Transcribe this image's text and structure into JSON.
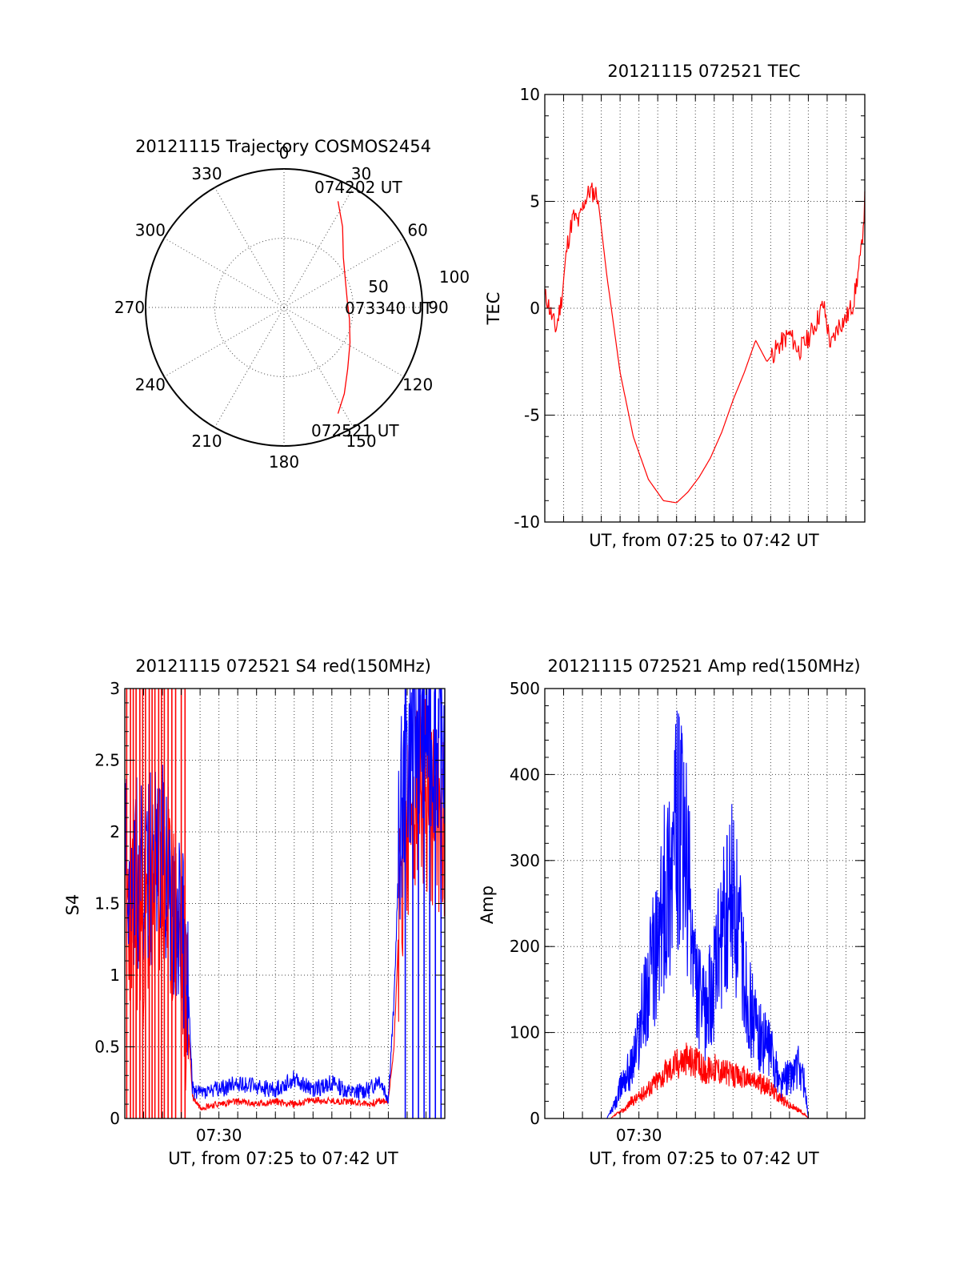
{
  "figure": {
    "colors": {
      "red": "#ff0000",
      "blue": "#0000ff",
      "axis": "#000000",
      "grid": "#444444",
      "background": "#ffffff"
    }
  },
  "chart_data": [
    {
      "type": "polar",
      "title": "20121115 Trajectory COSMOS2454",
      "angle_labels": [
        "0",
        "30",
        "60",
        "90",
        "120",
        "150",
        "180",
        "210",
        "240",
        "270",
        "300",
        "330"
      ],
      "radius_labels": [
        "50",
        "100"
      ],
      "rlim": [
        0,
        100
      ],
      "grid": true,
      "series": [
        {
          "color": "#ff0000",
          "points": [
            {
              "az": 153,
              "r": 86
            },
            {
              "az": 145,
              "r": 76
            },
            {
              "az": 134,
              "r": 64
            },
            {
              "az": 118,
              "r": 54
            },
            {
              "az": 100,
              "r": 48
            },
            {
              "az": 84,
              "r": 46
            },
            {
              "az": 68,
              "r": 48
            },
            {
              "az": 50,
              "r": 56
            },
            {
              "az": 36,
              "r": 72
            },
            {
              "az": 27,
              "r": 86
            }
          ]
        }
      ],
      "annotations": [
        "074202 UT",
        "073340 UT",
        "072521 UT"
      ]
    },
    {
      "type": "line",
      "title": "20121115 072521 TEC",
      "xlabel": "UT, from 07:25 to 07:42 UT",
      "ylabel": "TEC",
      "xlim": [
        0,
        17
      ],
      "ylim": [
        -10,
        10
      ],
      "yticks": [
        "-10",
        "-5",
        "0",
        "5",
        "10"
      ],
      "grid": true,
      "series": [
        {
          "color": "#ff0000",
          "x": [
            0.1,
            0.4,
            0.6,
            0.9,
            1.2,
            1.5,
            1.8,
            2.1,
            2.4,
            2.8,
            3.3,
            4.0,
            4.7,
            5.5,
            6.3,
            7.0,
            7.6,
            8.2,
            8.8,
            9.4,
            10.0,
            10.6,
            11.2,
            11.8,
            12.4,
            13.0,
            13.5,
            14.0,
            14.4,
            14.8,
            15.2,
            15.6,
            16.0,
            16.4,
            16.8,
            17.0
          ],
          "y": [
            0.5,
            -0.5,
            -1.0,
            0.5,
            3.0,
            4.3,
            4.0,
            5.0,
            5.5,
            5.3,
            1.5,
            -3.0,
            -6.0,
            -8.0,
            -9.0,
            -9.1,
            -8.6,
            -7.9,
            -7.0,
            -5.8,
            -4.3,
            -3.0,
            -1.5,
            -2.5,
            -1.8,
            -1.2,
            -2.0,
            -1.4,
            -0.7,
            0.2,
            -1.8,
            -0.8,
            -0.5,
            0.3,
            2.5,
            5.0
          ]
        }
      ]
    },
    {
      "type": "line",
      "title": "20121115 072521 S4 red(150MHz)",
      "xlabel": "UT, from 07:25 to 07:42 UT",
      "ylabel": "S4",
      "xlim": [
        0,
        17
      ],
      "ylim": [
        0,
        3
      ],
      "yticks": [
        "0",
        "0.5",
        "1",
        "1.5",
        "2",
        "2.5",
        "3"
      ],
      "xticks": [
        "07:30"
      ],
      "grid": true,
      "series": [
        {
          "color": "#ff0000",
          "x": [
            0.2,
            1.0,
            1.8,
            2.6,
            3.0,
            3.4,
            3.6,
            4.0,
            5.0,
            6.0,
            7.0,
            8.0,
            9.0,
            10.0,
            11.0,
            12.0,
            13.0,
            13.5,
            14.0,
            14.3,
            14.6,
            15.0,
            15.8,
            16.6
          ],
          "y": [
            1.5,
            1.3,
            1.6,
            1.4,
            1.2,
            0.6,
            0.15,
            0.08,
            0.1,
            0.12,
            0.1,
            0.12,
            0.1,
            0.13,
            0.12,
            0.12,
            0.1,
            0.12,
            0.12,
            0.5,
            1.5,
            2.0,
            2.3,
            2.1
          ]
        },
        {
          "color": "#0000ff",
          "x": [
            0.2,
            1.0,
            1.8,
            2.6,
            3.0,
            3.4,
            3.6,
            4.0,
            5.0,
            6.0,
            7.0,
            8.0,
            9.0,
            10.0,
            11.0,
            12.0,
            13.0,
            13.5,
            14.0,
            14.3,
            14.6,
            15.0,
            15.8,
            16.6
          ],
          "y": [
            1.8,
            1.6,
            1.9,
            1.5,
            1.4,
            0.8,
            0.2,
            0.18,
            0.2,
            0.25,
            0.22,
            0.2,
            0.28,
            0.2,
            0.25,
            0.18,
            0.2,
            0.28,
            0.15,
            0.8,
            2.0,
            2.5,
            2.8,
            2.6
          ]
        }
      ]
    },
    {
      "type": "line",
      "title": "20121115 072521 Amp red(150MHz)",
      "xlabel": "UT, from 07:25 to 07:42 UT",
      "ylabel": "Amp",
      "xlim": [
        0,
        17
      ],
      "ylim": [
        0,
        500
      ],
      "yticks": [
        "0",
        "100",
        "200",
        "300",
        "400",
        "500"
      ],
      "xticks": [
        "07:30"
      ],
      "grid": true,
      "series": [
        {
          "color": "#ff0000",
          "x": [
            0.0,
            3.5,
            3.8,
            4.2,
            4.6,
            5.0,
            5.5,
            6.0,
            6.5,
            7.0,
            7.5,
            8.0,
            8.5,
            9.0,
            9.5,
            10.0,
            10.5,
            11.0,
            11.5,
            12.0,
            12.5,
            13.0,
            13.5,
            13.8,
            14.0,
            17.0
          ],
          "y": [
            0,
            0,
            5,
            10,
            20,
            25,
            35,
            45,
            55,
            65,
            70,
            65,
            55,
            60,
            55,
            50,
            48,
            45,
            40,
            35,
            25,
            15,
            10,
            5,
            0,
            0
          ]
        },
        {
          "color": "#0000ff",
          "x": [
            0.0,
            3.3,
            3.8,
            4.2,
            4.6,
            5.0,
            5.5,
            6.0,
            6.5,
            7.0,
            7.5,
            8.0,
            8.5,
            9.0,
            9.5,
            10.0,
            10.5,
            11.0,
            11.5,
            12.0,
            12.5,
            13.0,
            13.5,
            13.8,
            14.0,
            17.0
          ],
          "y": [
            0,
            0,
            20,
            50,
            60,
            100,
            160,
            200,
            280,
            340,
            300,
            160,
            120,
            160,
            220,
            260,
            180,
            120,
            90,
            80,
            40,
            50,
            60,
            40,
            0,
            0
          ]
        }
      ]
    }
  ]
}
